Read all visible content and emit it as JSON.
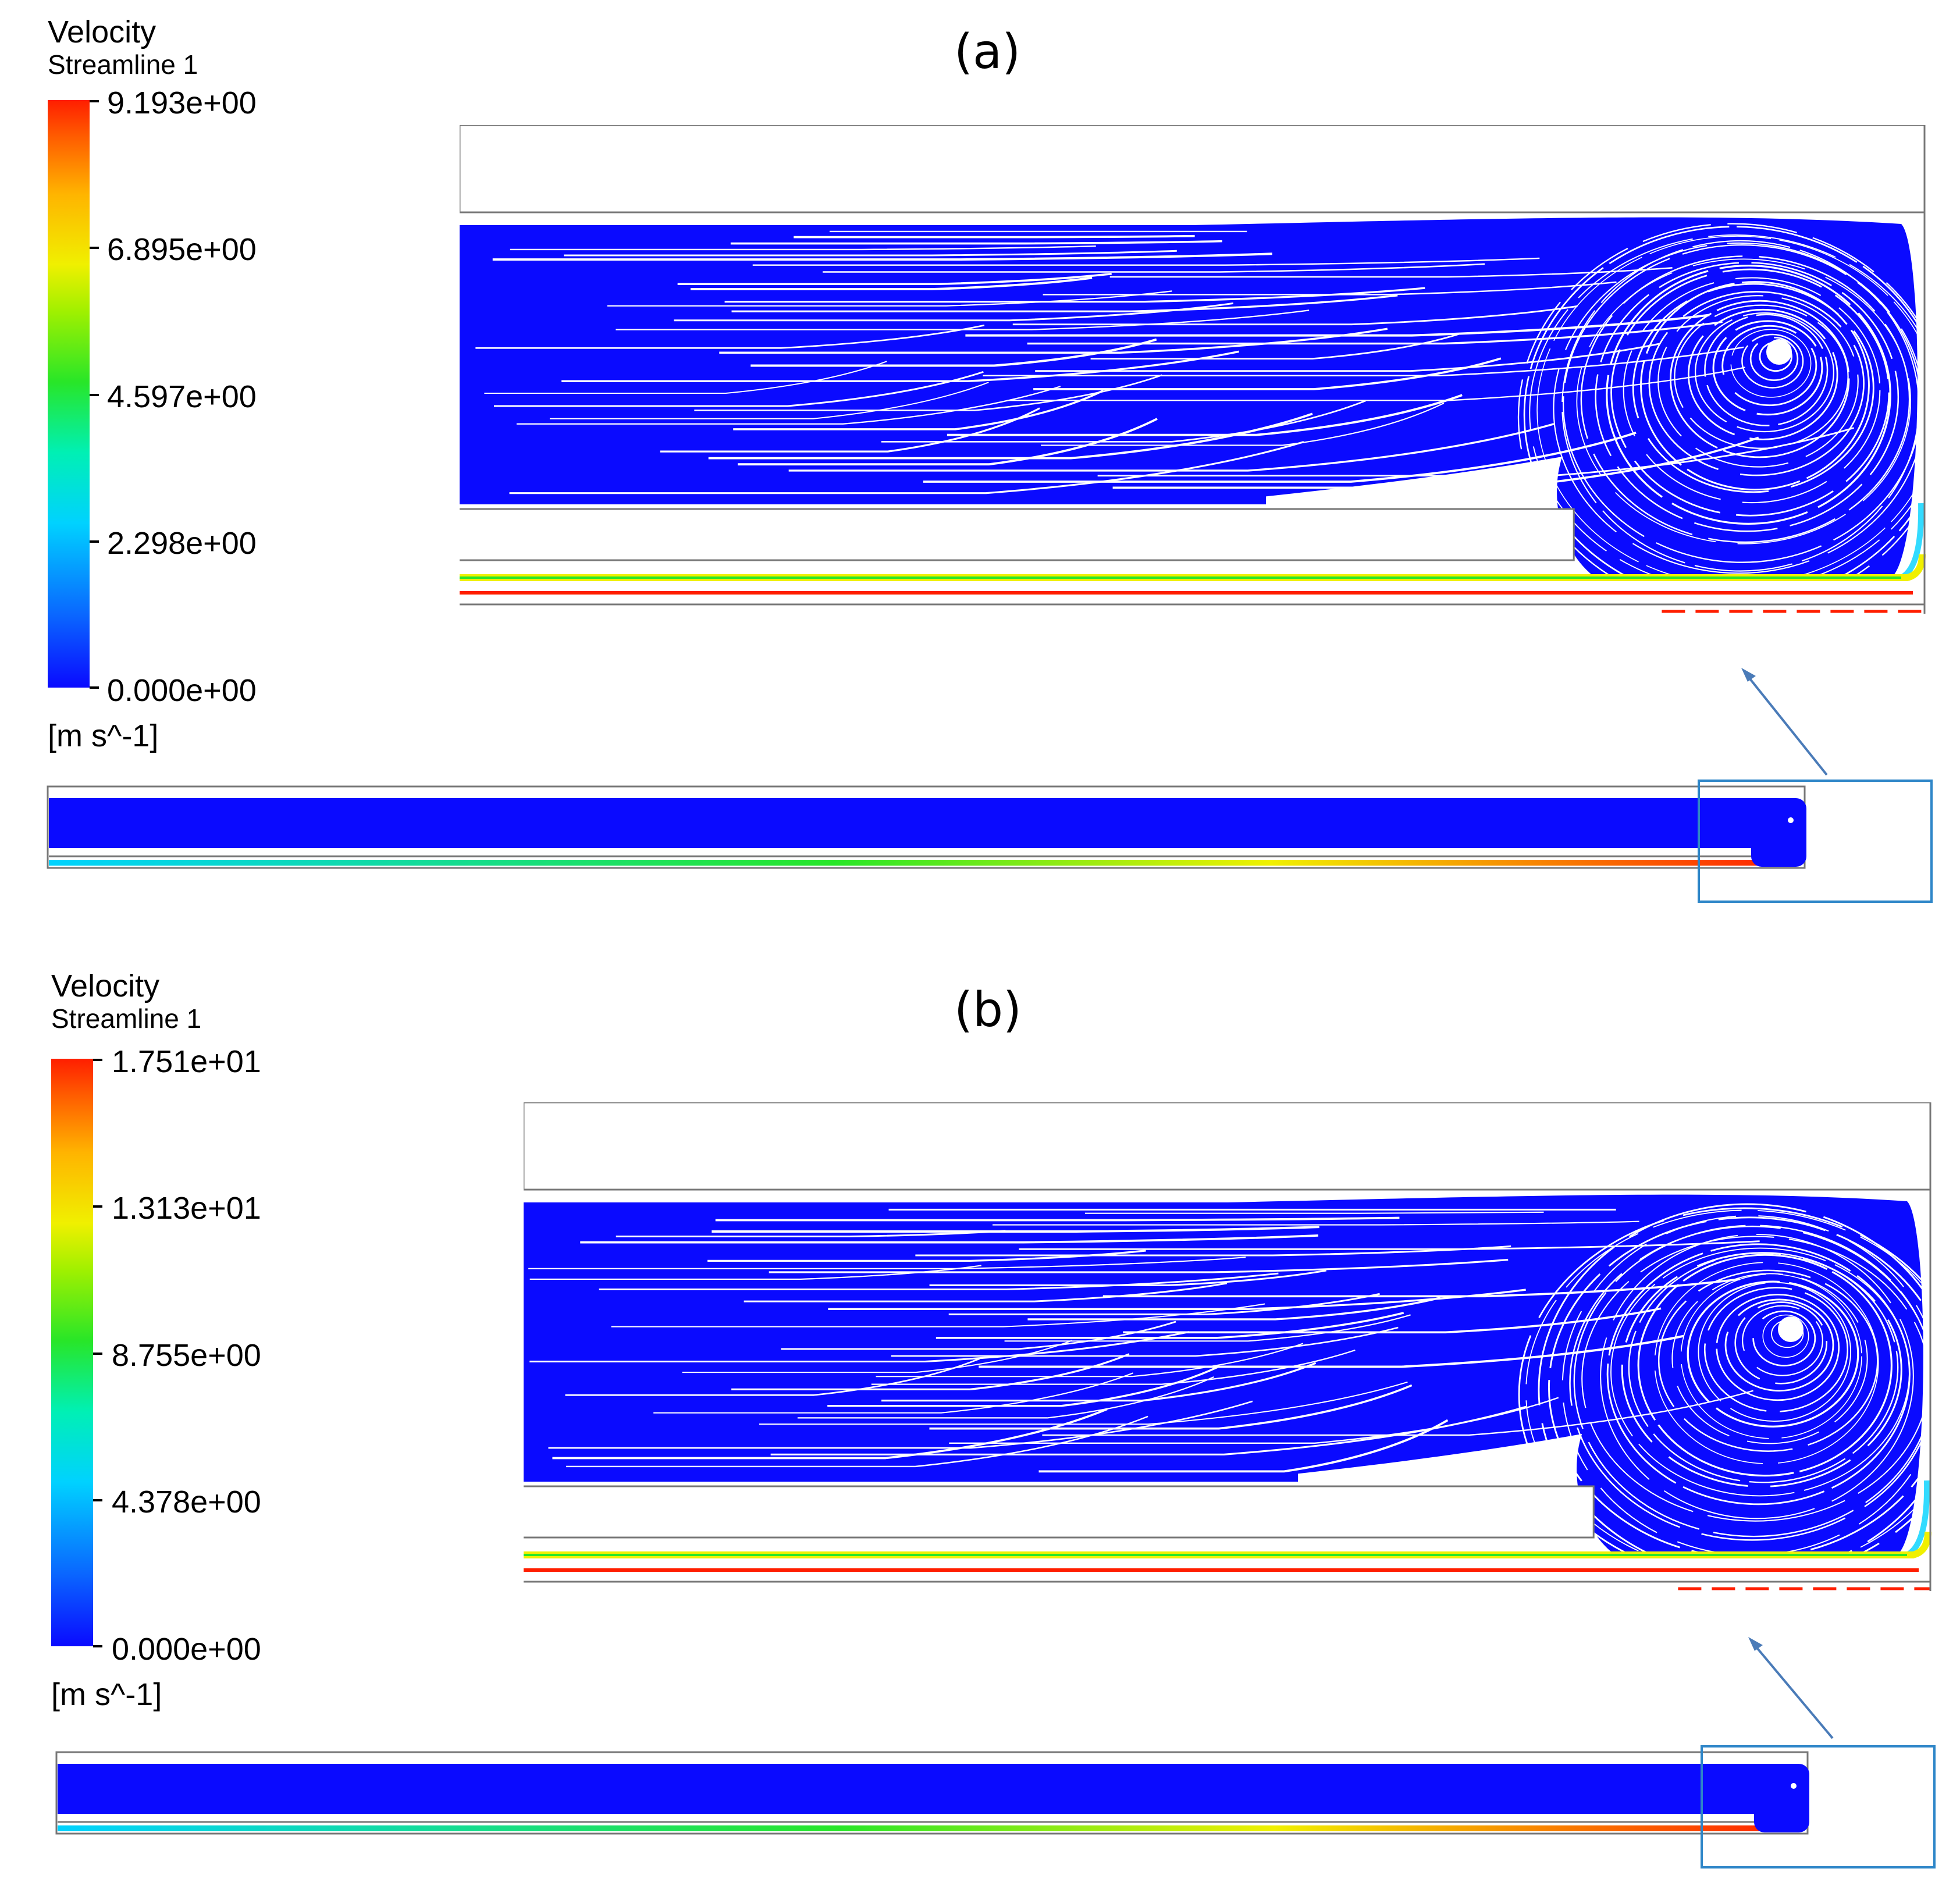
{
  "panels": [
    {
      "label": "(a)",
      "legend": {
        "title": "Velocity",
        "subtitle": "Streamline 1",
        "ticks": [
          "9.193e+00",
          "6.895e+00",
          "4.597e+00",
          "2.298e+00",
          "0.000e+00"
        ],
        "unit": "[m s^-1]",
        "max_value": 9.193
      }
    },
    {
      "label": "(b)",
      "legend": {
        "title": "Velocity",
        "subtitle": "Streamline 1",
        "ticks": [
          "1.751e+01",
          "1.313e+01",
          "8.755e+00",
          "4.378e+00",
          "0.000e+00"
        ],
        "unit": "[m s^-1]",
        "max_value": 17.51
      }
    }
  ],
  "colors": {
    "low": "#0a0aff",
    "mid_low": "#00d2ff",
    "mid": "#28e628",
    "mid_high": "#f0f000",
    "high": "#ff1e00",
    "streamline_white": "#ffffff",
    "wall": "#777777",
    "zoom_box": "#2e86c8",
    "arrow": "#4a7bb8"
  }
}
